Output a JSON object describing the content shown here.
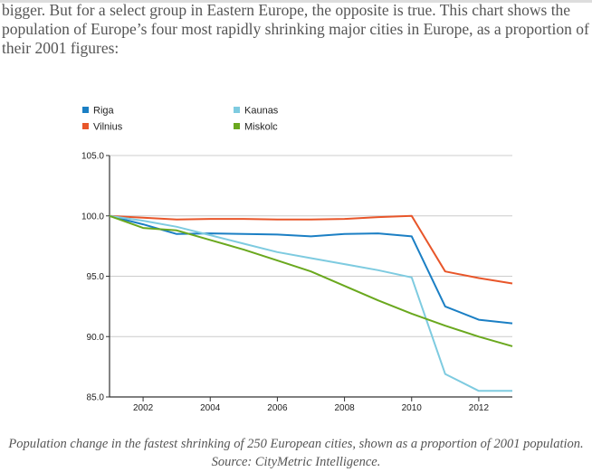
{
  "article": {
    "intro": "bigger. But for a select group in Eastern Europe, the opposite is true. This chart shows the population of Europe’s four most rapidly shrinking major cities in Europe, as a proportion of their 2001 figures:",
    "caption_line1": "Population change in the fastest shrinking of 250 European cities, shown as a proportion of 2001 population.",
    "caption_line2": "Source: CityMetric Intelligence."
  },
  "chart_data": {
    "type": "line",
    "title": "",
    "xlabel": "",
    "ylabel": "",
    "x": [
      2001,
      2002,
      2003,
      2004,
      2005,
      2006,
      2007,
      2008,
      2009,
      2010,
      2011,
      2012,
      2013
    ],
    "xlim": [
      2001,
      2013
    ],
    "ylim": [
      85,
      105
    ],
    "xticks": [
      2002,
      2004,
      2006,
      2008,
      2010,
      2012
    ],
    "yticks": [
      85,
      90,
      95,
      100,
      105
    ],
    "ytick_labels": [
      "85.0",
      "90.0",
      "95.0",
      "100.0",
      "105.0"
    ],
    "grid": "horizontal",
    "legend": "top",
    "series": [
      {
        "name": "Riga",
        "color": "#1b7fc4",
        "values": [
          100,
          99.3,
          98.5,
          98.55,
          98.5,
          98.45,
          98.3,
          98.5,
          98.55,
          98.3,
          92.5,
          91.4,
          91.1
        ]
      },
      {
        "name": "Vilnius",
        "color": "#e8562a",
        "values": [
          100,
          99.85,
          99.7,
          99.75,
          99.75,
          99.7,
          99.7,
          99.75,
          99.9,
          100,
          95.4,
          94.85,
          94.4
        ]
      },
      {
        "name": "Kaunas",
        "color": "#7ecbe0",
        "values": [
          100,
          99.6,
          99.1,
          98.4,
          97.7,
          97.0,
          96.5,
          96.0,
          95.5,
          94.9,
          86.9,
          85.5,
          85.5
        ]
      },
      {
        "name": "Miskolc",
        "color": "#6aa81e",
        "values": [
          100,
          99.0,
          98.8,
          98.0,
          97.2,
          96.3,
          95.4,
          94.2,
          93.0,
          91.9,
          90.9,
          90.0,
          89.2
        ]
      }
    ]
  }
}
